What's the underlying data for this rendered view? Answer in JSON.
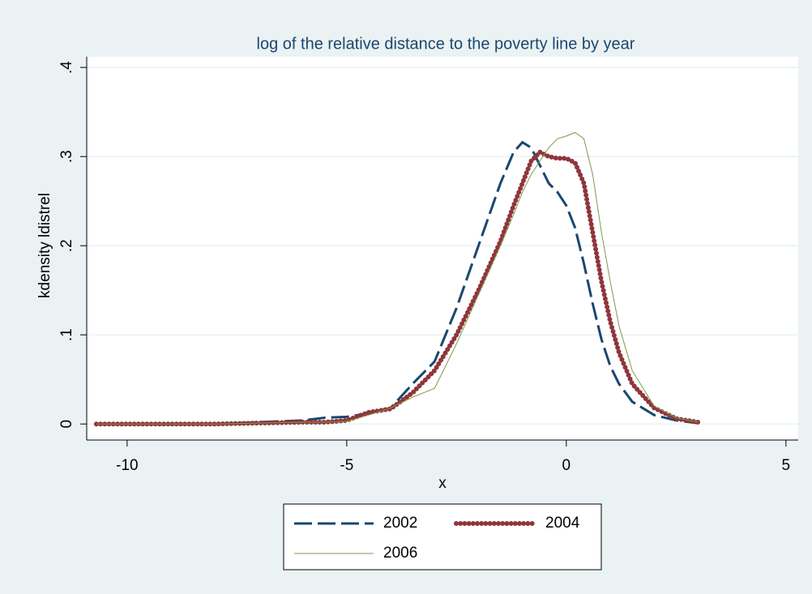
{
  "chart_data": {
    "type": "line",
    "title": "log of the relative distance to the poverty line by year",
    "x_label": "x",
    "y_label": "kdensity ldistrel",
    "x": [
      -10.7,
      -9,
      -8,
      -7,
      -6,
      -5.5,
      -5,
      -4.5,
      -4,
      -3.5,
      -3,
      -2.5,
      -2,
      -1.5,
      -1.2,
      -1,
      -0.8,
      -0.6,
      -0.4,
      -0.2,
      0,
      0.2,
      0.4,
      0.6,
      0.8,
      1,
      1.2,
      1.5,
      2,
      2.5,
      3
    ],
    "series": [
      {
        "name": "2002",
        "color": "#1a476f",
        "style": "dashed",
        "values": [
          0,
          0,
          0,
          0.002,
          0.004,
          0.007,
          0.008,
          0.012,
          0.018,
          0.045,
          0.07,
          0.13,
          0.2,
          0.27,
          0.305,
          0.316,
          0.31,
          0.29,
          0.27,
          0.26,
          0.245,
          0.22,
          0.18,
          0.135,
          0.095,
          0.065,
          0.045,
          0.025,
          0.01,
          0.004,
          0.001
        ]
      },
      {
        "name": "2004",
        "color": "#90353b",
        "style": "dotted",
        "values": [
          0,
          0,
          0,
          0.001,
          0.002,
          0.002,
          0.004,
          0.013,
          0.017,
          0.035,
          0.06,
          0.1,
          0.15,
          0.205,
          0.245,
          0.27,
          0.295,
          0.305,
          0.3,
          0.298,
          0.298,
          0.293,
          0.27,
          0.215,
          0.16,
          0.115,
          0.08,
          0.045,
          0.018,
          0.006,
          0.002
        ]
      },
      {
        "name": "2006",
        "color": "#7f9a48",
        "style": "thin",
        "values": [
          0,
          0,
          0,
          0.001,
          0.002,
          0.002,
          0.003,
          0.01,
          0.018,
          0.03,
          0.04,
          0.09,
          0.145,
          0.2,
          0.235,
          0.26,
          0.28,
          0.295,
          0.31,
          0.32,
          0.323,
          0.327,
          0.32,
          0.28,
          0.215,
          0.16,
          0.11,
          0.06,
          0.02,
          0.007,
          0.002
        ]
      }
    ],
    "xlim": [
      -10.92,
      5.28
    ],
    "xticks": [
      -10,
      -5,
      0,
      5
    ],
    "ylim": [
      -0.018,
      0.412
    ],
    "yticks": [
      0,
      {
        "value": 0.1,
        "label": ".1"
      },
      {
        "value": 0.2,
        "label": ".2"
      },
      {
        "value": 0.3,
        "label": ".3"
      },
      {
        "value": 0.4,
        "label": ".4"
      }
    ],
    "grid": true,
    "legend": "bottom"
  }
}
